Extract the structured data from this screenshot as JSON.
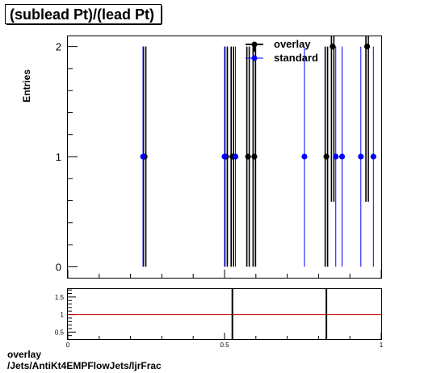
{
  "title": "(sublead Pt)/(lead Pt)",
  "footer": {
    "line1": "overlay",
    "line2": "/Jets/AntiKt4EMPFlowJets/ljrFrac"
  },
  "chart_data": [
    {
      "type": "scatter",
      "ylabel": "Entries",
      "xlim": [
        0,
        1
      ],
      "ylim": [
        -0.1,
        2.1
      ],
      "yticks": [
        0,
        1,
        2
      ],
      "legend_position": "top-right",
      "series": [
        {
          "name": "overlay",
          "color": "#000000",
          "points": [
            {
              "x": 0.245,
              "y": 1,
              "err": 1
            },
            {
              "x": 0.505,
              "y": 1,
              "err": 1
            },
            {
              "x": 0.525,
              "y": 1,
              "err": 1
            },
            {
              "x": 0.575,
              "y": 1,
              "err": 1
            },
            {
              "x": 0.595,
              "y": 1,
              "err": 1
            },
            {
              "x": 0.825,
              "y": 1,
              "err": 1
            },
            {
              "x": 0.845,
              "y": 2,
              "err": 1.41
            },
            {
              "x": 0.955,
              "y": 2,
              "err": 1.41
            }
          ]
        },
        {
          "name": "standard",
          "color": "#0000ff",
          "points": [
            {
              "x": 0.24,
              "y": 1,
              "err": 1
            },
            {
              "x": 0.5,
              "y": 1,
              "err": 1
            },
            {
              "x": 0.535,
              "y": 1,
              "err": 1
            },
            {
              "x": 0.755,
              "y": 1,
              "err": 1
            },
            {
              "x": 0.855,
              "y": 1,
              "err": 1
            },
            {
              "x": 0.875,
              "y": 1,
              "err": 1
            },
            {
              "x": 0.935,
              "y": 1,
              "err": 1
            },
            {
              "x": 0.975,
              "y": 1,
              "err": 1
            }
          ]
        }
      ]
    },
    {
      "type": "line",
      "xlim": [
        0,
        1
      ],
      "ylim": [
        0.3,
        1.75
      ],
      "yticks": [
        "0.5",
        "1",
        "1.5"
      ],
      "xticks": [
        "0",
        "0.5",
        "1"
      ],
      "reference_line": {
        "y": 1,
        "color": "#cc0000"
      },
      "ratio_points": [
        {
          "x": 0.525,
          "y": 1,
          "err": 1.2
        },
        {
          "x": 0.825,
          "y": 1,
          "err": 1.2
        }
      ]
    }
  ]
}
